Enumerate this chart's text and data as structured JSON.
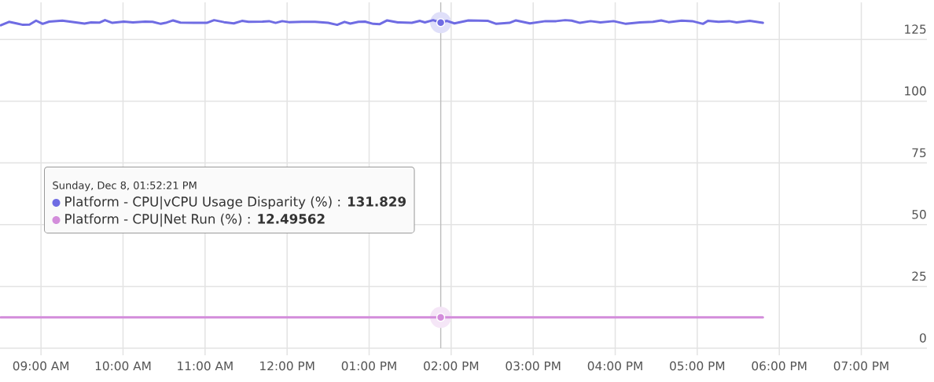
{
  "chart_data": {
    "type": "line",
    "series": [
      {
        "name": "Platform - CPU|vCPU Usage Disparity (%)",
        "color": "#6f6ce3",
        "x": [
          8.51,
          8.61,
          8.7,
          8.78,
          8.86,
          8.94,
          9.02,
          9.1,
          9.26,
          9.37,
          9.53,
          9.61,
          9.71,
          9.78,
          9.87,
          10.01,
          10.12,
          10.27,
          10.36,
          10.46,
          10.52,
          10.61,
          10.7,
          10.86,
          11.02,
          11.11,
          11.23,
          11.35,
          11.45,
          11.53,
          11.7,
          11.78,
          11.86,
          11.94,
          12.02,
          12.18,
          12.34,
          12.5,
          12.61,
          12.7,
          12.77,
          12.87,
          12.95,
          13.05,
          13.13,
          13.22,
          13.35,
          13.52,
          13.62,
          13.68,
          13.78,
          13.8725,
          13.95,
          14.04,
          14.21,
          14.45,
          14.55,
          14.71,
          14.79,
          14.96,
          15.15,
          15.28,
          15.39,
          15.47,
          15.57,
          15.7,
          15.82,
          15.98,
          16.13,
          16.3,
          16.46,
          16.56,
          16.65,
          16.81,
          16.94,
          17.07,
          17.13,
          17.26,
          17.39,
          17.48,
          17.64,
          17.8
        ],
        "values": [
          130.7,
          132.1,
          131.5,
          130.9,
          131.0,
          132.6,
          131.3,
          132.2,
          132.6,
          132.1,
          131.4,
          131.9,
          131.8,
          132.8,
          131.7,
          132.2,
          131.9,
          132.2,
          132.1,
          131.3,
          131.7,
          132.7,
          131.8,
          131.7,
          131.7,
          132.8,
          132.0,
          131.5,
          132.5,
          132.1,
          132.2,
          132.4,
          131.7,
          132.4,
          132.0,
          132.1,
          132.1,
          131.7,
          130.9,
          132.1,
          131.4,
          132.1,
          132.2,
          131.3,
          131.2,
          132.7,
          131.9,
          131.7,
          132.5,
          131.9,
          132.8,
          131.8,
          132.5,
          131.5,
          132.7,
          132.5,
          131.3,
          131.7,
          132.7,
          131.5,
          132.4,
          132.4,
          132.8,
          132.6,
          131.7,
          132.4,
          131.9,
          132.4,
          131.3,
          131.9,
          132.1,
          132.7,
          132.0,
          132.6,
          132.4,
          131.3,
          132.5,
          132.1,
          132.4,
          131.9,
          132.5,
          131.7
        ]
      },
      {
        "name": "Platform - CPU|Net Run (%)",
        "color": "#d38ddb",
        "x": [
          8.51,
          13.8725,
          17.8
        ],
        "values": [
          12.5,
          12.5,
          12.5
        ]
      }
    ],
    "xlim": [
      8.5,
      19.8
    ],
    "xticks": [
      {
        "value": 9,
        "label": "09:00 AM"
      },
      {
        "value": 10,
        "label": "10:00 AM"
      },
      {
        "value": 11,
        "label": "11:00 AM"
      },
      {
        "value": 12,
        "label": "12:00 PM"
      },
      {
        "value": 13,
        "label": "01:00 PM"
      },
      {
        "value": 14,
        "label": "02:00 PM"
      },
      {
        "value": 15,
        "label": "03:00 PM"
      },
      {
        "value": 16,
        "label": "04:00 PM"
      },
      {
        "value": 17,
        "label": "05:00 PM"
      },
      {
        "value": 18,
        "label": "06:00 PM"
      },
      {
        "value": 19,
        "label": "07:00 PM"
      }
    ],
    "ylim": [
      0,
      140
    ],
    "yticks": [
      0,
      25,
      50,
      75,
      100,
      125
    ],
    "grid": true,
    "legend": "left",
    "legend_title": "Sunday, Dec 8, 01:52:21 PM",
    "ref_lines": [
      {
        "axis": "x",
        "value": 13.8725,
        "color": "#bdbdbd"
      }
    ],
    "annotations": [
      ": **131.829**",
      ": **12.49562**"
    ]
  }
}
